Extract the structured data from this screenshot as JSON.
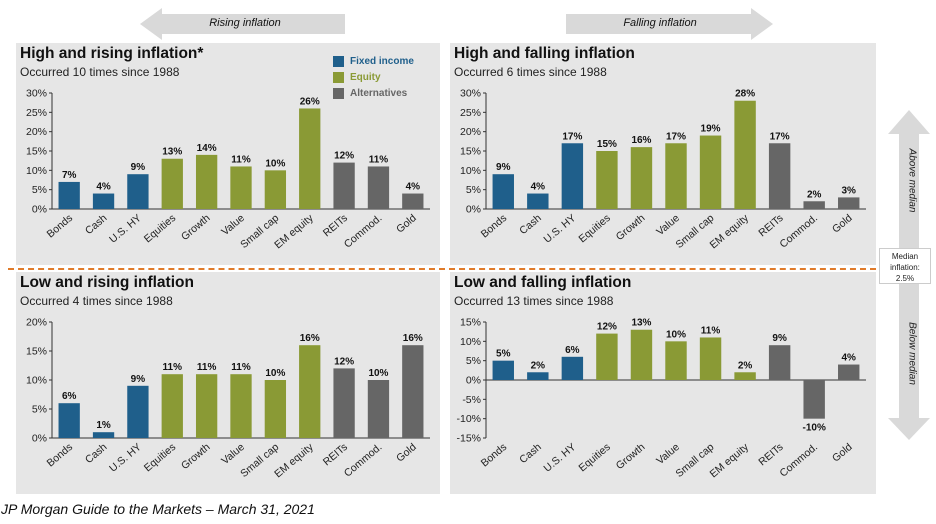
{
  "header": {
    "rising_label": "Rising inflation",
    "falling_label": "Falling inflation"
  },
  "legend": [
    {
      "label": "Fixed income",
      "color": "#1f5f8b"
    },
    {
      "label": "Equity",
      "color": "#8a9a35"
    },
    {
      "label": "Alternatives",
      "color": "#666666"
    }
  ],
  "side": {
    "above": "Above median",
    "below": "Below median",
    "median_line1": "Median",
    "median_line2": "inflation:",
    "median_line3": "2.5%"
  },
  "source": "JP Morgan Guide to the Markets – March 31, 2021",
  "colors": {
    "fixed": "#1f5f8b",
    "equity": "#8a9a35",
    "alt": "#666666",
    "divider": "#e07b2a"
  },
  "chart_data": [
    {
      "type": "bar",
      "title": "High and rising inflation*",
      "subtitle": "Occurred 10 times since 1988",
      "categories": [
        "Bonds",
        "Cash",
        "U.S. HY",
        "Equities",
        "Growth",
        "Value",
        "Small cap",
        "EM equity",
        "REITs",
        "Commod.",
        "Gold"
      ],
      "groups": [
        "fixed",
        "fixed",
        "fixed",
        "equity",
        "equity",
        "equity",
        "equity",
        "equity",
        "alt",
        "alt",
        "alt"
      ],
      "values": [
        7,
        4,
        9,
        13,
        14,
        11,
        10,
        26,
        12,
        11,
        4
      ],
      "labels": [
        "7%",
        "4%",
        "9%",
        "13%",
        "14%",
        "11%",
        "10%",
        "26%",
        "12%",
        "11%",
        "4%"
      ],
      "yticks": [
        "30%",
        "25%",
        "20%",
        "15%",
        "10%",
        "5%",
        "0%"
      ],
      "ylim": [
        0,
        30
      ]
    },
    {
      "type": "bar",
      "title": "High and falling inflation",
      "subtitle": "Occurred 6 times since 1988",
      "categories": [
        "Bonds",
        "Cash",
        "U.S. HY",
        "Equities",
        "Growth",
        "Value",
        "Small cap",
        "EM equity",
        "REITs",
        "Commod.",
        "Gold"
      ],
      "groups": [
        "fixed",
        "fixed",
        "fixed",
        "equity",
        "equity",
        "equity",
        "equity",
        "equity",
        "alt",
        "alt",
        "alt"
      ],
      "values": [
        9,
        4,
        17,
        15,
        16,
        17,
        19,
        28,
        17,
        2,
        3
      ],
      "labels": [
        "9%",
        "4%",
        "17%",
        "15%",
        "16%",
        "17%",
        "19%",
        "28%",
        "17%",
        "2%",
        "3%"
      ],
      "yticks": [
        "30%",
        "25%",
        "20%",
        "15%",
        "10%",
        "5%",
        "0%"
      ],
      "ylim": [
        0,
        30
      ]
    },
    {
      "type": "bar",
      "title": "Low and rising inflation",
      "subtitle": "Occurred 4 times since 1988",
      "categories": [
        "Bonds",
        "Cash",
        "U.S. HY",
        "Equities",
        "Growth",
        "Value",
        "Small cap",
        "EM equity",
        "REITs",
        "Commod.",
        "Gold"
      ],
      "groups": [
        "fixed",
        "fixed",
        "fixed",
        "equity",
        "equity",
        "equity",
        "equity",
        "equity",
        "alt",
        "alt",
        "alt"
      ],
      "values": [
        6,
        1,
        9,
        11,
        11,
        11,
        10,
        16,
        12,
        10,
        16
      ],
      "labels": [
        "6%",
        "1%",
        "9%",
        "11%",
        "11%",
        "11%",
        "10%",
        "16%",
        "12%",
        "10%",
        "16%"
      ],
      "yticks": [
        "20%",
        "15%",
        "10%",
        "5%",
        "0%"
      ],
      "ylim": [
        0,
        20
      ]
    },
    {
      "type": "bar",
      "title": "Low and falling inflation",
      "subtitle": "Occurred 13 times since 1988",
      "categories": [
        "Bonds",
        "Cash",
        "U.S. HY",
        "Equities",
        "Growth",
        "Value",
        "Small cap",
        "EM equity",
        "REITs",
        "Commod.",
        "Gold"
      ],
      "groups": [
        "fixed",
        "fixed",
        "fixed",
        "equity",
        "equity",
        "equity",
        "equity",
        "equity",
        "alt",
        "alt",
        "alt"
      ],
      "values": [
        5,
        2,
        6,
        12,
        13,
        10,
        11,
        2,
        9,
        -10,
        4
      ],
      "labels": [
        "5%",
        "2%",
        "6%",
        "12%",
        "13%",
        "10%",
        "11%",
        "2%",
        "9%",
        "-10%",
        "4%"
      ],
      "yticks": [
        "15%",
        "10%",
        "5%",
        "0%",
        "-5%",
        "-10%",
        "-15%"
      ],
      "ylim": [
        -15,
        15
      ]
    }
  ]
}
